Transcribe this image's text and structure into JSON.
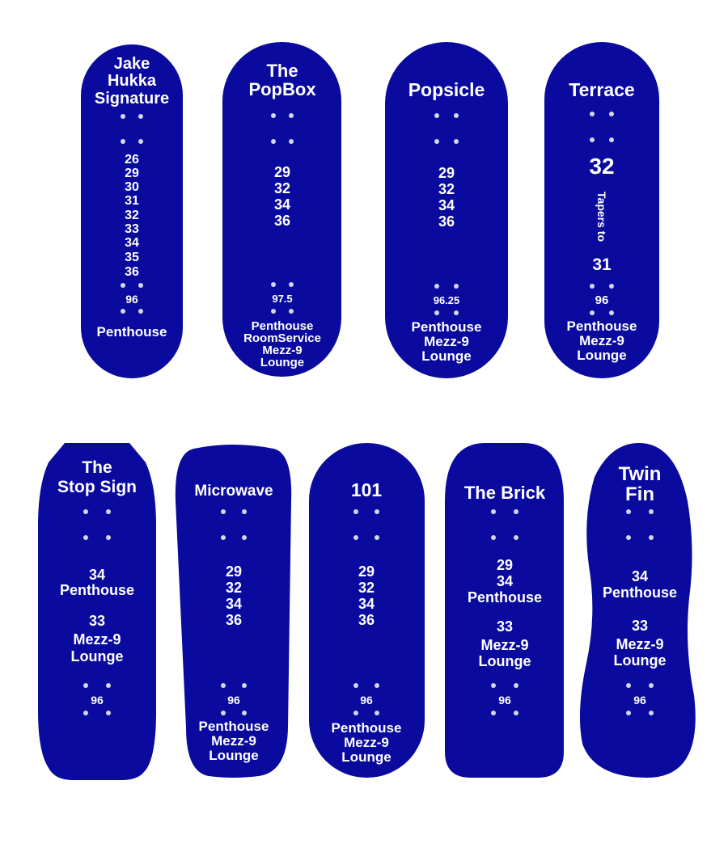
{
  "colors": {
    "deck": "#0a0a9e",
    "hole": "#d6d6f2",
    "text": "#ffffff",
    "background": "#ffffff"
  },
  "decks": [
    {
      "title": [
        "Jake",
        "Hukka",
        "Signature"
      ],
      "widths": [
        "26",
        "29",
        "30",
        "31",
        "32",
        "33",
        "34",
        "35",
        "36"
      ],
      "wheelbase": "96",
      "models": [
        "Penthouse"
      ]
    },
    {
      "title": [
        "The",
        "PopBox"
      ],
      "widths": [
        "29",
        "32",
        "34",
        "36"
      ],
      "wheelbase": "97.5",
      "models": [
        "Penthouse",
        "RoomService",
        "Mezz-9",
        "Lounge"
      ]
    },
    {
      "title": [
        "Popsicle"
      ],
      "widths": [
        "29",
        "32",
        "34",
        "36"
      ],
      "wheelbase": "96.25",
      "models": [
        "Penthouse",
        "Mezz-9",
        "Lounge"
      ]
    },
    {
      "title": [
        "Terrace"
      ],
      "widths": [
        "32",
        "31"
      ],
      "taper_label": "Tapers to",
      "wheelbase": "96",
      "models": [
        "Penthouse",
        "Mezz-9",
        "Lounge"
      ]
    },
    {
      "title": [
        "The",
        "Stop Sign"
      ],
      "widths": [
        "34",
        "Penthouse",
        "33",
        "Mezz-9",
        "Lounge"
      ],
      "wheelbase": "96",
      "models": []
    },
    {
      "title": [
        "Microwave"
      ],
      "widths": [
        "29",
        "32",
        "34",
        "36"
      ],
      "wheelbase": "96",
      "models": [
        "Penthouse",
        "Mezz-9",
        "Lounge"
      ]
    },
    {
      "title": [
        "101"
      ],
      "widths": [
        "29",
        "32",
        "34",
        "36"
      ],
      "wheelbase": "96",
      "models": [
        "Penthouse",
        "Mezz-9",
        "Lounge"
      ]
    },
    {
      "title": [
        "The Brick"
      ],
      "widths": [
        "29",
        "34",
        "Penthouse",
        "33",
        "Mezz-9",
        "Lounge"
      ],
      "wheelbase": "96",
      "models": []
    },
    {
      "title": [
        "Twin",
        "Fin"
      ],
      "widths": [
        "34",
        "Penthouse",
        "33",
        "Mezz-9",
        "Lounge"
      ],
      "wheelbase": "96",
      "models": []
    }
  ]
}
